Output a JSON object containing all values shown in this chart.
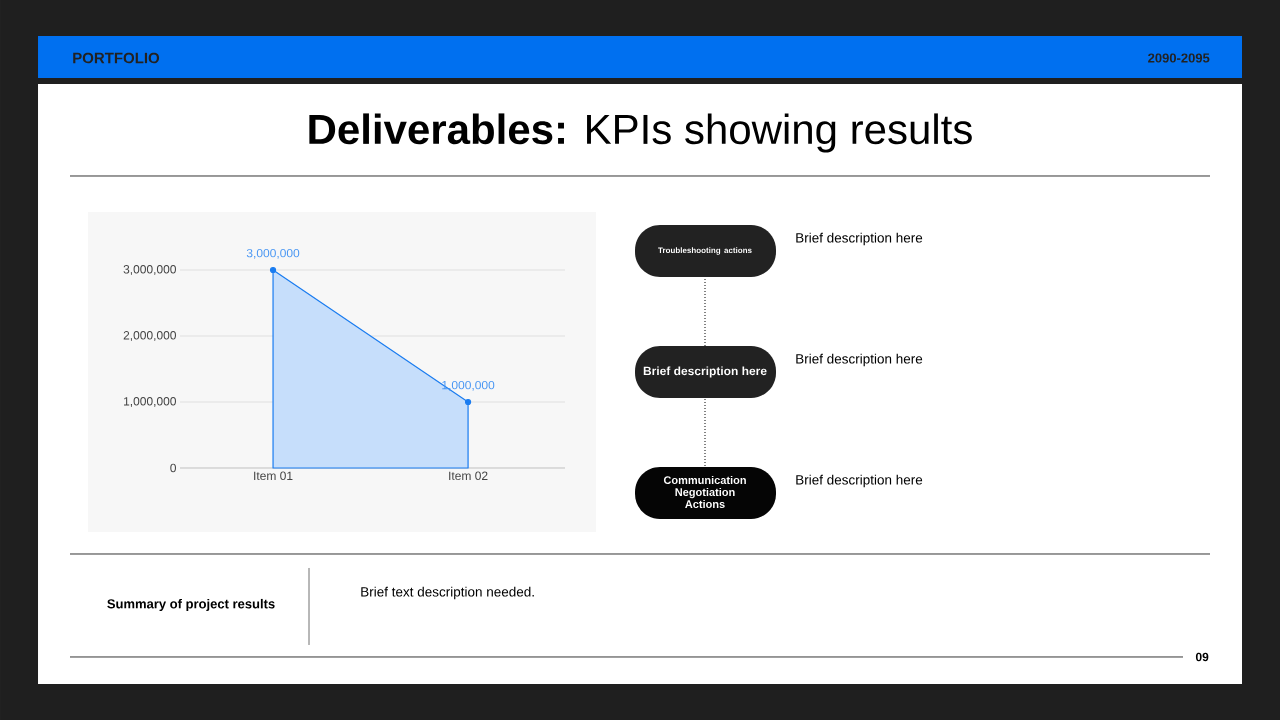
{
  "chart_data": [
    {
      "type": "other",
      "title": "**Deliverables:** KPIs showing results",
      "annotations": [
        "PORTFOLIO",
        "2090-2095",
        "Troubleshooting actions",
        "Brief description here",
        "Brief description here",
        "Brief description here",
        "Communication Negotiation Actions",
        "Brief description here",
        "Summary of project results",
        "Brief text description needed.",
        "09"
      ]
    },
    {
      "type": "area",
      "categories": [
        "Item 01",
        "Item 02"
      ],
      "values": [
        3000000,
        1000000
      ],
      "color": "#1a7cf0",
      "value_labels": [
        "3,000,000",
        "1,000,000"
      ],
      "ylim": [
        0,
        3000000
      ],
      "yticks": [
        0,
        {
          "value": 1000000,
          "label": "1,000,000"
        },
        {
          "value": 2000000,
          "label": "2,000,000"
        },
        {
          "value": 3000000,
          "label": "3,000,000"
        }
      ],
      "grid": "y",
      "marker": "circle"
    }
  ]
}
